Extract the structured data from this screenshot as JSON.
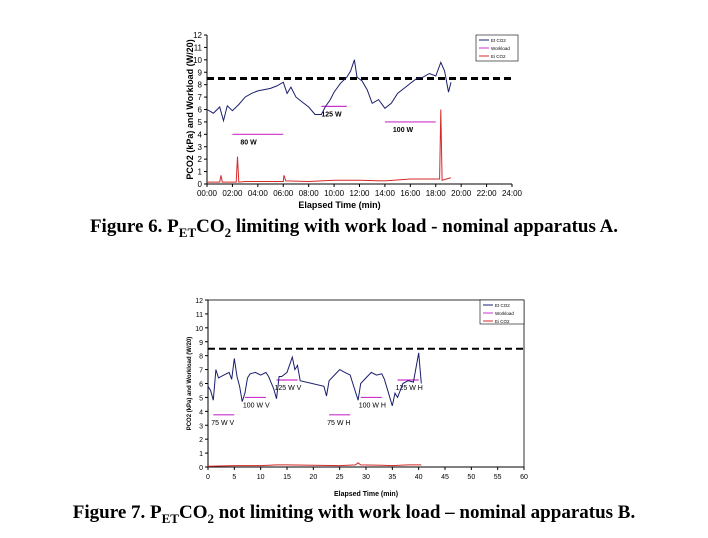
{
  "figures": [
    {
      "caption": {
        "prefix": "Figure 6. P",
        "sub1": "ET",
        "mid": "CO",
        "sub2": "2",
        "suffix": " limiting with work load - nominal apparatus A."
      }
    },
    {
      "caption": {
        "prefix": "Figure 7. P",
        "sub1": "ET",
        "mid": "CO",
        "sub2": "2",
        "suffix": " not limiting with work load – nominal apparatus B."
      }
    }
  ],
  "chart_data": [
    {
      "type": "line",
      "xlabel": "Elapsed Time (min)",
      "ylabel": "PCO2 (kPa) and Workload (W/20)",
      "ylim": [
        0,
        12
      ],
      "xlim": [
        0,
        24
      ],
      "xticks": [
        "00:00",
        "02:00",
        "04:00",
        "06:00",
        "08:00",
        "10:00",
        "12:00",
        "14:00",
        "16:00",
        "18:00",
        "20:00",
        "22:00",
        "24:00"
      ],
      "legend": [
        "Et CO2",
        "Workload",
        "Ei CO2"
      ],
      "legend_position": "top-right",
      "threshold": 8.5,
      "colors": {
        "et": "#1a1f6e",
        "work": "#cc33cc",
        "ei": "#d42a2a"
      },
      "series": [
        {
          "name": "Et CO2",
          "x": [
            0,
            0.5,
            1,
            1.3,
            1.6,
            2,
            2.5,
            3,
            3.5,
            4,
            4.5,
            5,
            5.5,
            6,
            6.3,
            6.6,
            7,
            7.5,
            8,
            8.5,
            9,
            9.3,
            9.7,
            10,
            10.5,
            11,
            11.3,
            11.6,
            11.8,
            12.2,
            12.6,
            13,
            13.5,
            14,
            14.5,
            15,
            15.5,
            16,
            16.5,
            17,
            17.5,
            18,
            18.4,
            18.7,
            19,
            19.2
          ],
          "y": [
            6.0,
            5.7,
            6.2,
            5.1,
            6.3,
            5.9,
            6.4,
            7.0,
            7.3,
            7.5,
            7.6,
            7.7,
            7.9,
            8.2,
            7.3,
            7.8,
            7.0,
            6.6,
            6.2,
            5.6,
            5.6,
            6.2,
            6.8,
            7.4,
            8.1,
            8.6,
            9.1,
            10.0,
            8.6,
            8.3,
            7.6,
            6.5,
            6.8,
            6.1,
            6.5,
            7.3,
            7.7,
            8.1,
            8.5,
            8.6,
            8.9,
            8.7,
            9.8,
            9.1,
            7.4,
            8.2
          ]
        },
        {
          "name": "Ei CO2",
          "x": [
            0,
            1,
            1.1,
            1.2,
            2.3,
            2.4,
            2.5,
            3,
            6,
            6.05,
            6.2,
            8,
            10,
            12,
            14,
            16,
            18,
            18.3,
            18.4,
            18.5,
            19,
            19.2
          ],
          "y": [
            0.15,
            0.15,
            0.7,
            0.15,
            0.15,
            2.2,
            0.15,
            0.2,
            0.2,
            0.7,
            0.25,
            0.2,
            0.3,
            0.3,
            0.25,
            0.4,
            0.4,
            0.4,
            6.0,
            0.3,
            0.45,
            0.5
          ]
        }
      ],
      "workload": [
        {
          "x0": 2,
          "x1": 6,
          "y": 4.0,
          "label": "80 W"
        },
        {
          "x0": 9,
          "x1": 11,
          "y": 6.25,
          "label": "125 W"
        },
        {
          "x0": 14,
          "x1": 18,
          "y": 5.0,
          "label": "100 W"
        }
      ]
    },
    {
      "type": "line",
      "xlabel": "Elapsed Time (min)",
      "ylabel": "PCO2 (kPa) and Workload (W/20)",
      "ylim": [
        0,
        12
      ],
      "xlim": [
        0,
        60
      ],
      "xticks": [
        "0",
        "5",
        "10",
        "15",
        "20",
        "25",
        "30",
        "35",
        "40",
        "45",
        "50",
        "55",
        "60"
      ],
      "legend": [
        "Et CO2",
        "Workload",
        "Ei CO2"
      ],
      "legend_position": "top-right",
      "threshold": 8.5,
      "colors": {
        "et": "#1a1f6e",
        "work": "#cc33cc",
        "ei": "#d42a2a"
      },
      "series": [
        {
          "name": "Et CO2",
          "x": [
            0,
            0.5,
            1,
            1.5,
            2,
            3,
            4,
            4.5,
            5,
            5.5,
            6,
            6.5,
            7,
            7.5,
            8,
            9,
            10,
            11,
            11.5,
            12.5,
            13,
            13.5,
            14,
            15,
            16,
            16.5,
            17,
            17.5,
            22,
            22.5,
            23,
            24,
            25,
            26,
            27,
            27.5,
            28.5,
            29,
            30,
            31,
            32,
            33,
            33.5,
            35,
            35.5,
            36,
            37,
            38,
            39,
            40,
            40.5
          ],
          "y": [
            5.8,
            5.5,
            4.8,
            7.0,
            6.4,
            6.6,
            6.8,
            6.3,
            7.8,
            6.5,
            5.8,
            4.7,
            5.3,
            6.4,
            6.7,
            6.8,
            6.6,
            6.8,
            6.5,
            5.6,
            4.9,
            6.5,
            6.5,
            6.8,
            7.9,
            7.0,
            7.3,
            6.2,
            5.8,
            5.1,
            6.2,
            6.6,
            7.0,
            6.8,
            6.6,
            6.0,
            4.8,
            6.0,
            6.4,
            6.8,
            6.6,
            6.7,
            6.3,
            4.4,
            5.3,
            5.0,
            6.0,
            6.2,
            6.1,
            8.2,
            6.0
          ]
        },
        {
          "name": "Ei CO2",
          "x": [
            0,
            5,
            10,
            13,
            15,
            20,
            25,
            28,
            28.5,
            29,
            33,
            35,
            38,
            40.5
          ],
          "y": [
            0.05,
            0.1,
            0.1,
            0.15,
            0.15,
            0.12,
            0.1,
            0.15,
            0.3,
            0.15,
            0.12,
            0.1,
            0.15,
            0.15
          ]
        }
      ],
      "workload": [
        {
          "x0": 1,
          "x1": 5,
          "y": 3.75,
          "label": "75 W  V"
        },
        {
          "x0": 7,
          "x1": 11,
          "y": 5.0,
          "label": "100 W  V"
        },
        {
          "x0": 13,
          "x1": 17,
          "y": 6.25,
          "label": "125 W  V"
        },
        {
          "x0": 23,
          "x1": 27,
          "y": 3.75,
          "label": "75 W  H"
        },
        {
          "x0": 29,
          "x1": 33,
          "y": 5.0,
          "label": "100 W  H"
        },
        {
          "x0": 36,
          "x1": 40,
          "y": 6.25,
          "label": "125 W  H"
        }
      ]
    }
  ]
}
